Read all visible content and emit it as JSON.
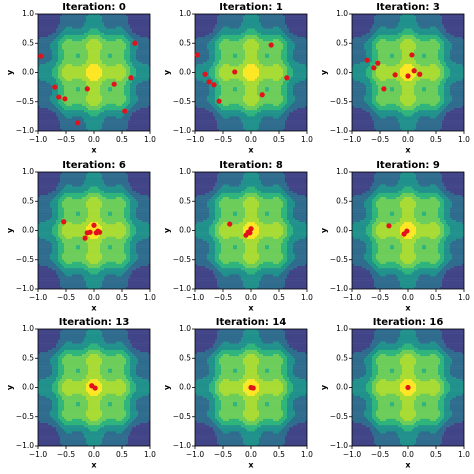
{
  "chart_data": [
    {
      "type": "scatter",
      "title": "Iteration: 0",
      "x_label": "x",
      "y_label": "y",
      "xlim": [
        -1,
        1
      ],
      "ylim": [
        -1,
        1
      ],
      "xticks": [
        {
          "value": -1,
          "label": "−1.0"
        },
        {
          "value": -0.5,
          "label": "−0.5"
        },
        {
          "value": 0,
          "label": "0.0"
        },
        {
          "value": 0.5,
          "label": "0.5"
        },
        {
          "value": 1,
          "label": "1.0"
        }
      ],
      "yticks": [
        {
          "value": -1,
          "label": "−1.0"
        },
        {
          "value": -0.5,
          "label": "−0.5"
        },
        {
          "value": 0,
          "label": "0.0"
        },
        {
          "value": 0.5,
          "label": "0.5"
        },
        {
          "value": 1,
          "label": "1.0"
        }
      ],
      "color": "#e0121c",
      "x": [
        -0.95,
        0.73,
        -0.7,
        -0.63,
        -0.52,
        -0.12,
        0.36,
        0.66,
        0.55,
        -0.29
      ],
      "y": [
        0.28,
        0.5,
        -0.25,
        -0.42,
        -0.45,
        -0.28,
        -0.2,
        -0.09,
        -0.66,
        -0.86
      ]
    },
    {
      "type": "scatter",
      "title": "Iteration: 1",
      "x_label": "x",
      "y_label": "y",
      "xlim": [
        -1,
        1
      ],
      "ylim": [
        -1,
        1
      ],
      "xticks": [
        {
          "value": -1,
          "label": "−1.0"
        },
        {
          "value": -0.5,
          "label": "−0.5"
        },
        {
          "value": 0,
          "label": "0.0"
        },
        {
          "value": 0.5,
          "label": "0.5"
        },
        {
          "value": 1,
          "label": "1.0"
        }
      ],
      "yticks": [
        {
          "value": -1,
          "label": "−1.0"
        },
        {
          "value": -0.5,
          "label": "−0.5"
        },
        {
          "value": 0,
          "label": "0.0"
        },
        {
          "value": 0.5,
          "label": "0.5"
        },
        {
          "value": 1,
          "label": "1.0"
        }
      ],
      "color": "#e0121c",
      "x": [
        -0.96,
        0.36,
        -0.82,
        -0.75,
        -0.57,
        0.2,
        -0.29,
        0.64,
        -0.66
      ],
      "y": [
        0.3,
        0.47,
        -0.03,
        -0.16,
        -0.49,
        -0.38,
        0.01,
        -0.09,
        -0.21
      ]
    },
    {
      "type": "scatter",
      "title": "Iteration: 3",
      "x_label": "x",
      "y_label": "y",
      "xlim": [
        -1,
        1
      ],
      "ylim": [
        -1,
        1
      ],
      "xticks": [
        {
          "value": -1,
          "label": "−1.0"
        },
        {
          "value": -0.5,
          "label": "−0.5"
        },
        {
          "value": 0,
          "label": "0.0"
        },
        {
          "value": 0.5,
          "label": "0.5"
        },
        {
          "value": 1,
          "label": "1.0"
        }
      ],
      "yticks": [
        {
          "value": -1,
          "label": "−1.0"
        },
        {
          "value": -0.5,
          "label": "−0.5"
        },
        {
          "value": 0,
          "label": "0.0"
        },
        {
          "value": 0.5,
          "label": "0.5"
        },
        {
          "value": 1,
          "label": "1.0"
        }
      ],
      "color": "#e0121c",
      "x": [
        -0.73,
        -0.61,
        -0.23,
        0.07,
        0.11,
        0,
        0.21,
        -0.43,
        -0.54
      ],
      "y": [
        0.21,
        0.08,
        -0.04,
        0.3,
        0.03,
        -0.06,
        -0.03,
        -0.28,
        0.16
      ]
    },
    {
      "type": "scatter",
      "title": "Iteration: 6",
      "x_label": "x",
      "y_label": "y",
      "xlim": [
        -1,
        1
      ],
      "ylim": [
        -1,
        1
      ],
      "xticks": [
        {
          "value": -1,
          "label": "−1.0"
        },
        {
          "value": -0.5,
          "label": "−0.5"
        },
        {
          "value": 0,
          "label": "0.0"
        },
        {
          "value": 0.5,
          "label": "0.5"
        },
        {
          "value": 1,
          "label": "1.0"
        }
      ],
      "yticks": [
        {
          "value": -1,
          "label": "−1.0"
        },
        {
          "value": -0.5,
          "label": "−0.5"
        },
        {
          "value": 0,
          "label": "0.0"
        },
        {
          "value": 0.5,
          "label": "0.5"
        },
        {
          "value": 1,
          "label": "1.0"
        }
      ],
      "color": "#e0121c",
      "x": [
        -0.54,
        0,
        -0.16,
        -0.07,
        0.04,
        -0.12,
        0.07,
        0.1
      ],
      "y": [
        0.15,
        0.09,
        -0.13,
        -0.03,
        -0.04,
        -0.04,
        -0.01,
        -0.03
      ]
    },
    {
      "type": "scatter",
      "title": "Iteration: 8",
      "x_label": "x",
      "y_label": "y",
      "xlim": [
        -1,
        1
      ],
      "ylim": [
        -1,
        1
      ],
      "xticks": [
        {
          "value": -1,
          "label": "−1.0"
        },
        {
          "value": -0.5,
          "label": "−0.5"
        },
        {
          "value": 0,
          "label": "0.0"
        },
        {
          "value": 0.5,
          "label": "0.5"
        },
        {
          "value": 1,
          "label": "1.0"
        }
      ],
      "yticks": [
        {
          "value": -1,
          "label": "−1.0"
        },
        {
          "value": -0.5,
          "label": "−0.5"
        },
        {
          "value": 0,
          "label": "0.0"
        },
        {
          "value": 0.5,
          "label": "0.5"
        },
        {
          "value": 1,
          "label": "1.0"
        }
      ],
      "color": "#e0121c",
      "x": [
        -0.38,
        -0.05,
        0,
        -0.09,
        -0.02
      ],
      "y": [
        0.11,
        -0.03,
        0.03,
        -0.08,
        -0.04
      ]
    },
    {
      "type": "scatter",
      "title": "Iteration: 9",
      "x_label": "x",
      "y_label": "y",
      "xlim": [
        -1,
        1
      ],
      "ylim": [
        -1,
        1
      ],
      "xticks": [
        {
          "value": -1,
          "label": "−1.0"
        },
        {
          "value": -0.5,
          "label": "−0.5"
        },
        {
          "value": 0,
          "label": "0.0"
        },
        {
          "value": 0.5,
          "label": "0.5"
        },
        {
          "value": 1,
          "label": "1.0"
        }
      ],
      "yticks": [
        {
          "value": -1,
          "label": "−1.0"
        },
        {
          "value": -0.5,
          "label": "−0.5"
        },
        {
          "value": 0,
          "label": "0.0"
        },
        {
          "value": 0.5,
          "label": "0.5"
        },
        {
          "value": 1,
          "label": "1.0"
        }
      ],
      "color": "#e0121c",
      "x": [
        -0.34,
        -0.02,
        -0.07
      ],
      "y": [
        0.08,
        -0.01,
        -0.06
      ]
    },
    {
      "type": "scatter",
      "title": "Iteration: 13",
      "x_label": "x",
      "y_label": "y",
      "xlim": [
        -1,
        1
      ],
      "ylim": [
        -1,
        1
      ],
      "xticks": [
        {
          "value": -1,
          "label": "−1.0"
        },
        {
          "value": -0.5,
          "label": "−0.5"
        },
        {
          "value": 0,
          "label": "0.0"
        },
        {
          "value": 0.5,
          "label": "0.5"
        },
        {
          "value": 1,
          "label": "1.0"
        }
      ],
      "yticks": [
        {
          "value": -1,
          "label": "−1.0"
        },
        {
          "value": -0.5,
          "label": "−0.5"
        },
        {
          "value": 0,
          "label": "0.0"
        },
        {
          "value": 0.5,
          "label": "0.5"
        },
        {
          "value": 1,
          "label": "1.0"
        }
      ],
      "color": "#e0121c",
      "x": [
        -0.04,
        0.02
      ],
      "y": [
        0.03,
        -0.01
      ]
    },
    {
      "type": "scatter",
      "title": "Iteration: 14",
      "x_label": "x",
      "y_label": "y",
      "xlim": [
        -1,
        1
      ],
      "ylim": [
        -1,
        1
      ],
      "xticks": [
        {
          "value": -1,
          "label": "−1.0"
        },
        {
          "value": -0.5,
          "label": "−0.5"
        },
        {
          "value": 0,
          "label": "0.0"
        },
        {
          "value": 0.5,
          "label": "0.5"
        },
        {
          "value": 1,
          "label": "1.0"
        }
      ],
      "yticks": [
        {
          "value": -1,
          "label": "−1.0"
        },
        {
          "value": -0.5,
          "label": "−0.5"
        },
        {
          "value": 0,
          "label": "0.0"
        },
        {
          "value": 0.5,
          "label": "0.5"
        },
        {
          "value": 1,
          "label": "1.0"
        }
      ],
      "color": "#e0121c",
      "x": [
        0,
        0.04
      ],
      "y": [
        0,
        -0.01
      ]
    },
    {
      "type": "scatter",
      "title": "Iteration: 16",
      "x_label": "x",
      "y_label": "y",
      "xlim": [
        -1,
        1
      ],
      "ylim": [
        -1,
        1
      ],
      "xticks": [
        {
          "value": -1,
          "label": "−1.0"
        },
        {
          "value": -0.5,
          "label": "−0.5"
        },
        {
          "value": 0,
          "label": "0.0"
        },
        {
          "value": 0.5,
          "label": "0.5"
        },
        {
          "value": 1,
          "label": "1.0"
        }
      ],
      "yticks": [
        {
          "value": -1,
          "label": "−1.0"
        },
        {
          "value": -0.5,
          "label": "−0.5"
        },
        {
          "value": 0,
          "label": "0.0"
        },
        {
          "value": 0.5,
          "label": "0.5"
        },
        {
          "value": 1,
          "label": "1.0"
        }
      ],
      "color": "#e0121c",
      "x": [
        0
      ],
      "y": [
        0
      ]
    }
  ]
}
